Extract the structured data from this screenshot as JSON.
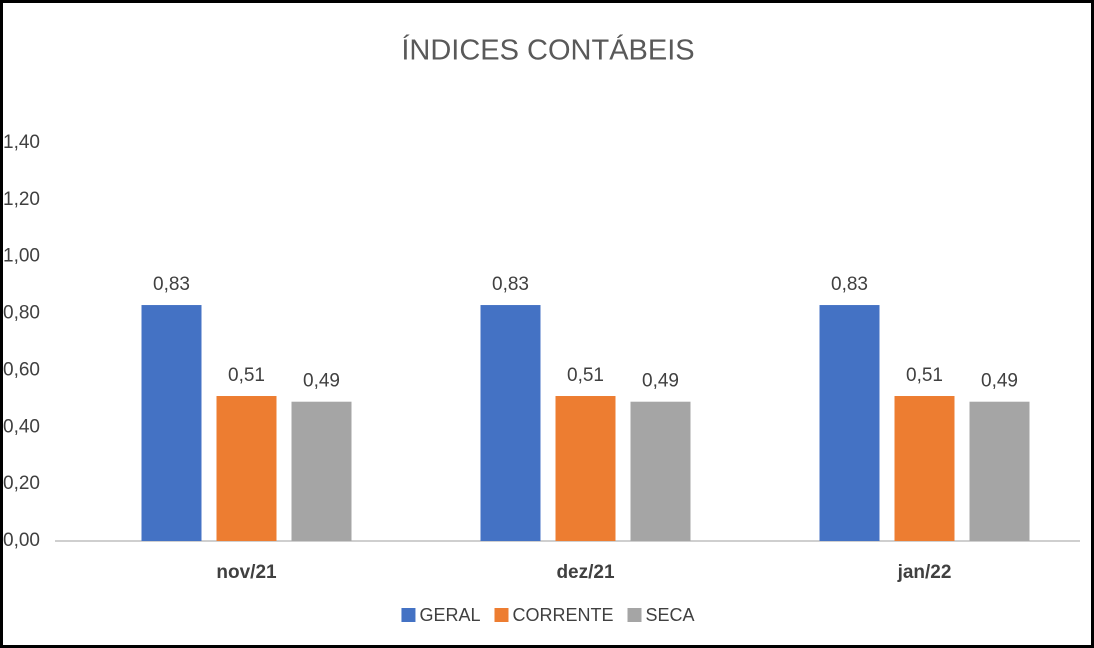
{
  "chart_data": {
    "type": "bar",
    "title": "ÍNDICES CONTÁBEIS",
    "categories": [
      "nov/21",
      "dez/21",
      "jan/22"
    ],
    "series": [
      {
        "name": "GERAL",
        "color": "#4472c4",
        "values": [
          0.83,
          0.83,
          0.83
        ],
        "value_labels": [
          "0,83",
          "0,83",
          "0,83"
        ]
      },
      {
        "name": "CORRENTE",
        "color": "#ed7d31",
        "values": [
          0.51,
          0.51,
          0.51
        ],
        "value_labels": [
          "0,51",
          "0,51",
          "0,51"
        ]
      },
      {
        "name": "SECA",
        "color": "#a5a5a5",
        "values": [
          0.49,
          0.49,
          0.49
        ],
        "value_labels": [
          "0,49",
          "0,49",
          "0,49"
        ]
      }
    ],
    "ylim": [
      0,
      1.4
    ],
    "yticks": [
      {
        "value": 0,
        "label": "0,00"
      },
      {
        "value": 0.2,
        "label": "0,20"
      },
      {
        "value": 0.4,
        "label": "0,40"
      },
      {
        "value": 0.6,
        "label": "0,60"
      },
      {
        "value": 0.8,
        "label": "0,80"
      },
      {
        "value": 1.0,
        "label": "1,00"
      },
      {
        "value": 1.2,
        "label": "1,20"
      },
      {
        "value": 1.4,
        "label": "1,40"
      }
    ],
    "grid": false,
    "legend": "bottom"
  }
}
